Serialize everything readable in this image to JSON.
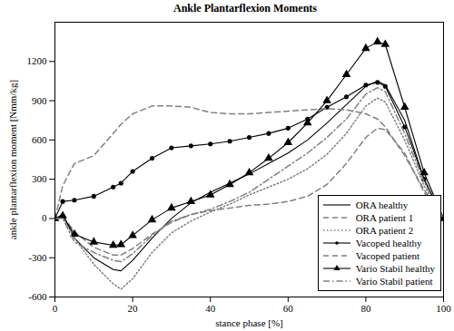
{
  "chart_data": {
    "type": "line",
    "title": "Ankle Plantarflexion Moments",
    "x_label": "stance phase [%]",
    "y_label": "ankle plantarflexion moment [Nmm/kg]",
    "x": [
      0,
      2,
      5,
      10,
      15,
      17,
      20,
      25,
      30,
      35,
      40,
      45,
      50,
      55,
      60,
      65,
      70,
      75,
      80,
      83,
      85,
      90,
      95,
      100
    ],
    "series": [
      {
        "name": "ORA healthy",
        "color": "#000000",
        "line_style": "solid",
        "marker": "none",
        "values": [
          0,
          30,
          -150,
          -300,
          -390,
          -400,
          -320,
          -150,
          0,
          120,
          200,
          270,
          340,
          420,
          500,
          600,
          730,
          870,
          1010,
          1050,
          1020,
          750,
          300,
          0
        ]
      },
      {
        "name": "ORA patient 1",
        "color": "#808080",
        "line_style": "dashed",
        "marker": "none",
        "values": [
          0,
          20,
          -100,
          -220,
          -280,
          -280,
          -230,
          -120,
          -30,
          30,
          60,
          80,
          100,
          110,
          130,
          170,
          260,
          420,
          620,
          690,
          680,
          500,
          200,
          0
        ]
      },
      {
        "name": "ORA patient 2",
        "color": "#808080",
        "line_style": "dotted",
        "marker": "none",
        "values": [
          0,
          10,
          -150,
          -350,
          -500,
          -540,
          -460,
          -260,
          -110,
          -20,
          50,
          110,
          180,
          240,
          300,
          380,
          490,
          650,
          860,
          920,
          890,
          600,
          250,
          0
        ]
      },
      {
        "name": "Vacoped healthy",
        "color": "#000000",
        "line_style": "solid",
        "marker": "circle",
        "values": [
          0,
          130,
          140,
          170,
          240,
          270,
          360,
          460,
          540,
          555,
          570,
          590,
          620,
          650,
          690,
          760,
          850,
          930,
          1020,
          1040,
          1010,
          700,
          300,
          0
        ]
      },
      {
        "name": "Vacoped patient",
        "color": "#808080",
        "line_style": "dashed",
        "marker": "none",
        "values": [
          0,
          250,
          420,
          480,
          650,
          720,
          800,
          860,
          860,
          850,
          810,
          800,
          800,
          810,
          820,
          830,
          840,
          830,
          800,
          760,
          700,
          480,
          220,
          0
        ]
      },
      {
        "name": "Vario Stabil healthy",
        "color": "#000000",
        "line_style": "solid",
        "marker": "triangle",
        "values": [
          0,
          20,
          -120,
          -180,
          -205,
          -200,
          -130,
          -10,
          80,
          130,
          180,
          260,
          350,
          460,
          580,
          730,
          900,
          1100,
          1300,
          1350,
          1330,
          850,
          350,
          0
        ]
      },
      {
        "name": "Vario Stabil patient",
        "color": "#808080",
        "line_style": "dashdot",
        "marker": "none",
        "values": [
          0,
          0,
          -180,
          -260,
          -320,
          -330,
          -270,
          -130,
          -20,
          30,
          70,
          130,
          200,
          300,
          400,
          500,
          620,
          760,
          950,
          1000,
          970,
          650,
          280,
          0
        ]
      }
    ],
    "xlim": [
      0,
      100
    ],
    "xticks": [
      0,
      20,
      40,
      60,
      80,
      100
    ],
    "ylim": [
      -600,
      1500
    ],
    "yticks": [
      -600,
      -300,
      0,
      300,
      600,
      900,
      1200
    ],
    "grid": false,
    "legend": "lower right"
  }
}
